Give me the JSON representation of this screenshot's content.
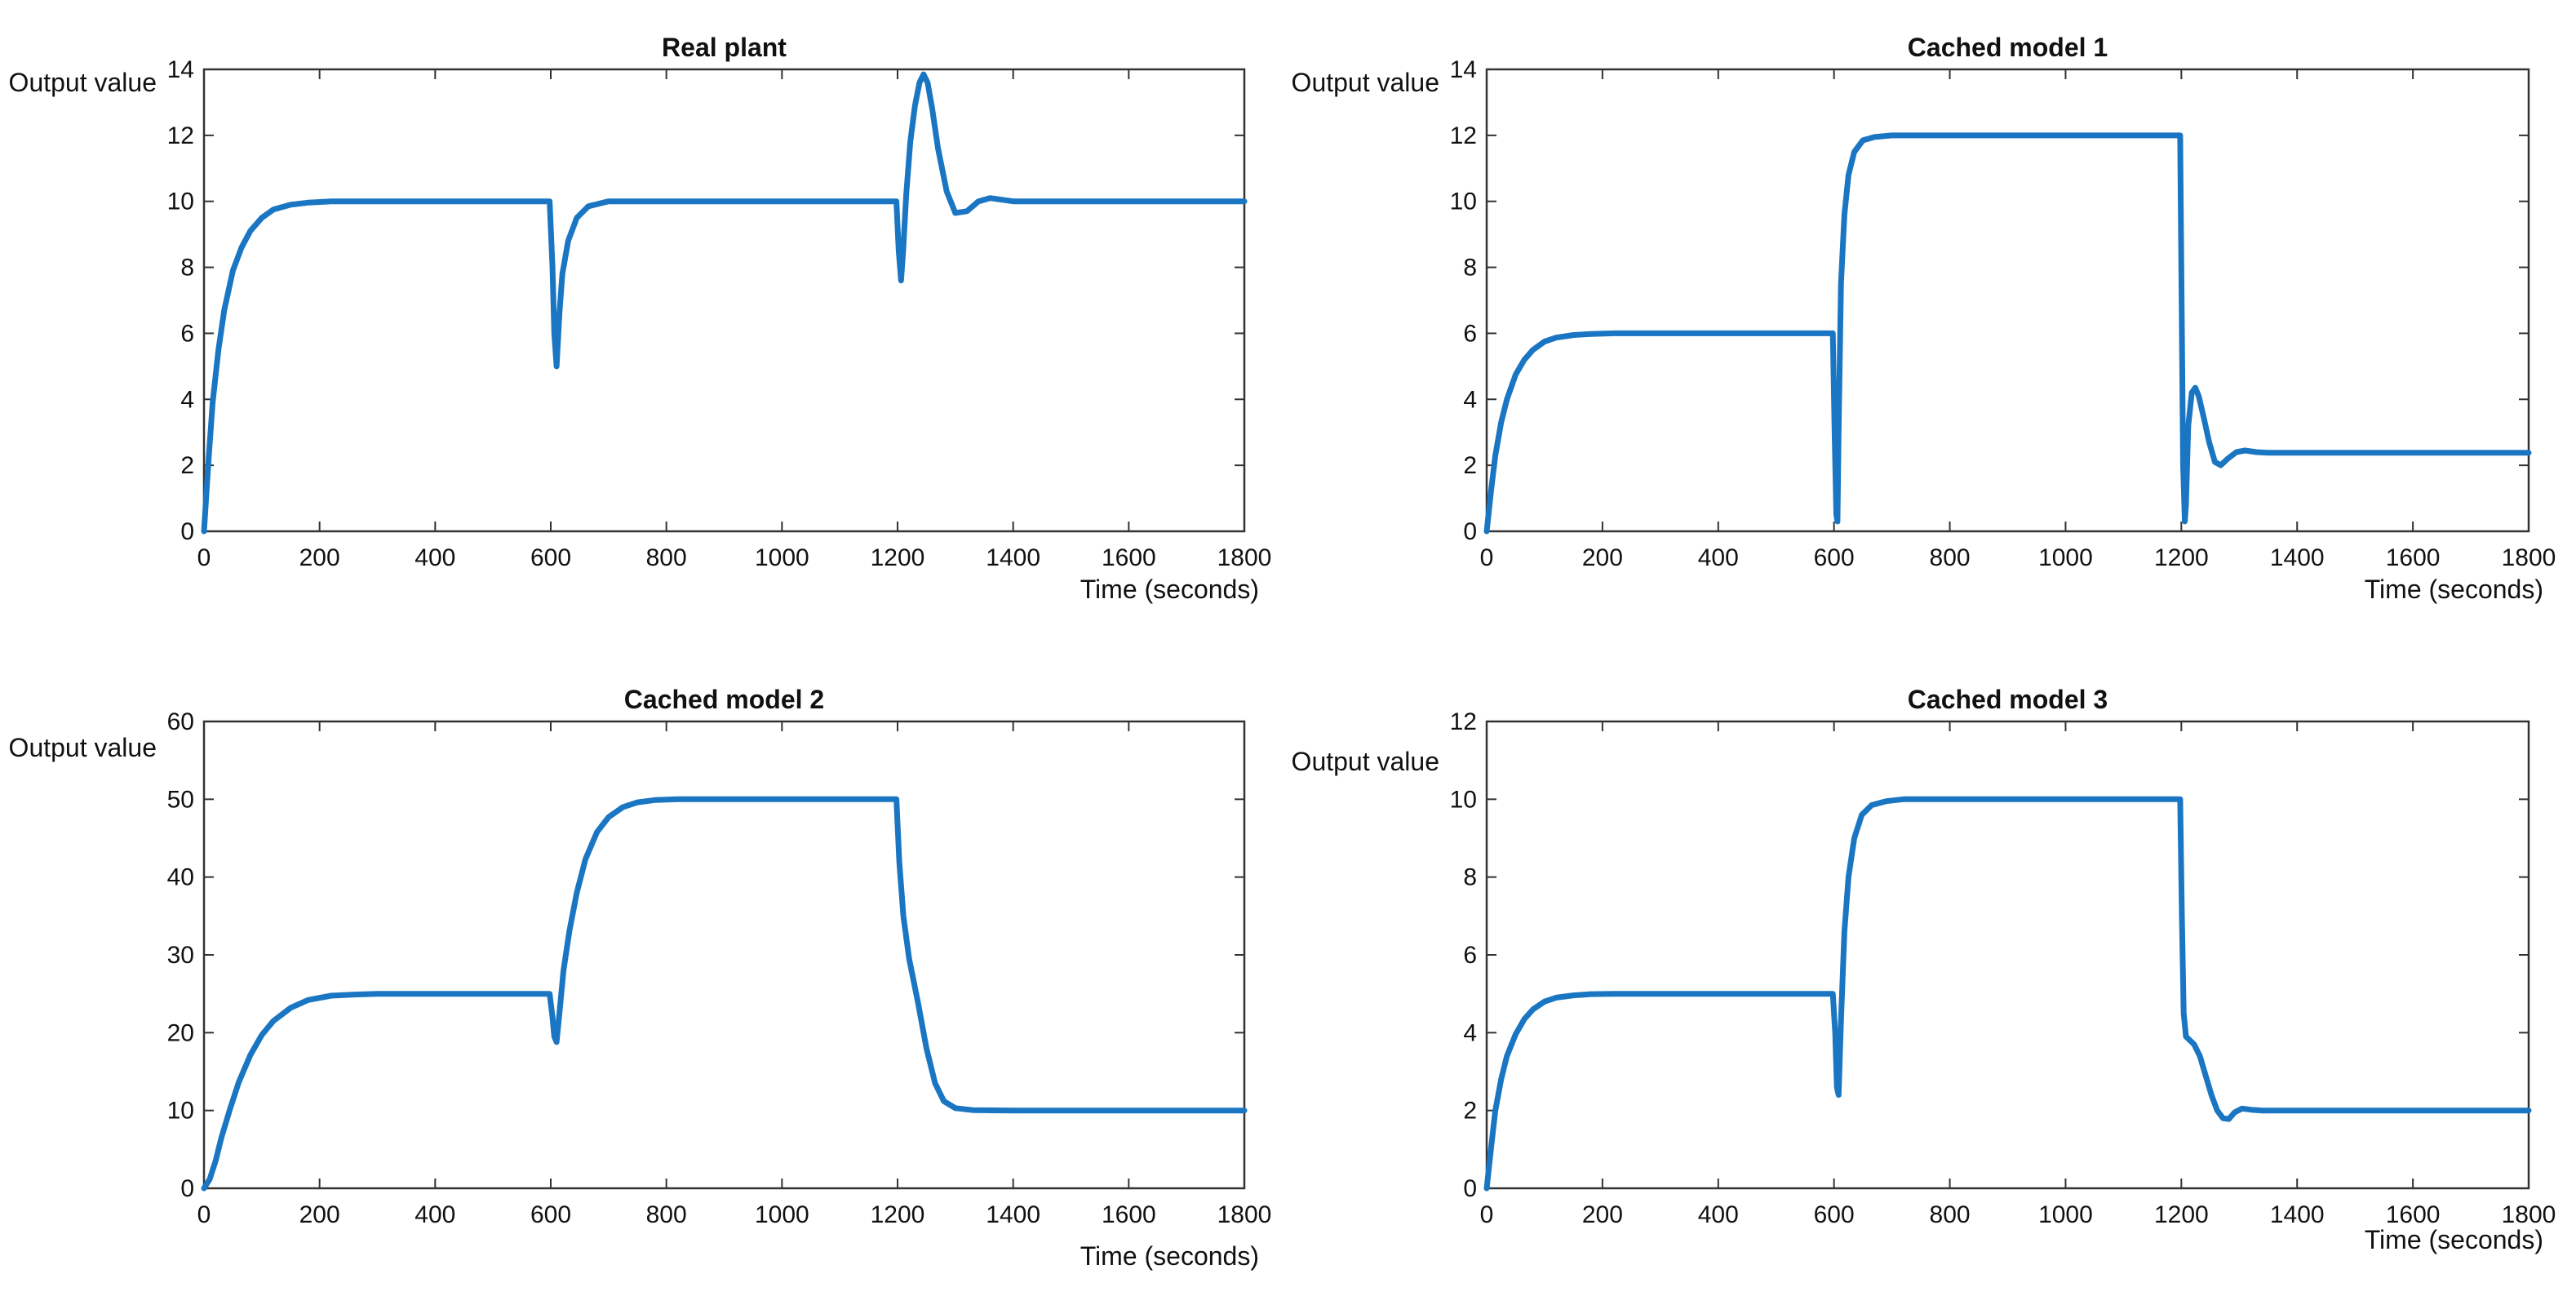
{
  "chart_data": [
    {
      "type": "line",
      "title": "Real plant",
      "xlabel": "Time (seconds)",
      "ylabel": "Output value",
      "xlim": [
        0,
        1800
      ],
      "ylim": [
        0,
        14
      ],
      "xticks": [
        "0",
        "200",
        "400",
        "600",
        "800",
        "1000",
        "1200",
        "1400",
        "1600",
        "1800"
      ],
      "yticks": [
        "0",
        "2",
        "4",
        "6",
        "8",
        "10",
        "12",
        "14"
      ],
      "series": [
        {
          "name": "output",
          "color": "#1a76c2",
          "x": [
            0,
            8,
            15,
            25,
            35,
            50,
            65,
            80,
            100,
            120,
            150,
            180,
            220,
            300,
            400,
            500,
            598,
            603,
            606,
            610,
            615,
            620,
            630,
            645,
            665,
            700,
            800,
            900,
            1000,
            1100,
            1198,
            1202,
            1206,
            1210,
            1215,
            1222,
            1230,
            1238,
            1245,
            1252,
            1260,
            1270,
            1285,
            1300,
            1320,
            1340,
            1360,
            1380,
            1400,
            1500,
            1600,
            1700,
            1800
          ],
          "y": [
            0,
            2.2,
            3.9,
            5.5,
            6.7,
            7.9,
            8.6,
            9.1,
            9.5,
            9.75,
            9.9,
            9.96,
            10,
            10,
            10,
            10,
            10,
            8,
            6,
            5,
            6.6,
            7.8,
            8.8,
            9.5,
            9.85,
            10,
            10,
            10,
            10,
            10,
            10,
            8.5,
            7.6,
            8.6,
            10.2,
            11.8,
            12.9,
            13.6,
            13.85,
            13.6,
            12.8,
            11.6,
            10.3,
            9.65,
            9.7,
            10.0,
            10.1,
            10.05,
            10,
            10,
            10,
            10,
            10
          ]
        }
      ]
    },
    {
      "type": "line",
      "title": "Cached model 1",
      "xlabel": "Time (seconds)",
      "ylabel": "Output value",
      "xlim": [
        0,
        1800
      ],
      "ylim": [
        0,
        14
      ],
      "xticks": [
        "0",
        "200",
        "400",
        "600",
        "800",
        "1000",
        "1200",
        "1400",
        "1600",
        "1800"
      ],
      "yticks": [
        "0",
        "2",
        "4",
        "6",
        "8",
        "10",
        "12",
        "14"
      ],
      "series": [
        {
          "name": "output",
          "color": "#1a76c2",
          "x": [
            0,
            8,
            15,
            25,
            35,
            50,
            65,
            80,
            100,
            120,
            150,
            180,
            220,
            300,
            400,
            500,
            598,
            601,
            604,
            606,
            608,
            612,
            618,
            625,
            635,
            650,
            670,
            700,
            800,
            900,
            1000,
            1100,
            1198,
            1200,
            1203,
            1206,
            1208,
            1212,
            1218,
            1224,
            1230,
            1238,
            1248,
            1258,
            1268,
            1280,
            1295,
            1310,
            1330,
            1350,
            1400,
            1500,
            1600,
            1700,
            1800
          ],
          "y": [
            0,
            1.3,
            2.3,
            3.3,
            4.0,
            4.75,
            5.2,
            5.5,
            5.75,
            5.87,
            5.95,
            5.98,
            6,
            6,
            6,
            6,
            6,
            3,
            0.5,
            0.3,
            3,
            7.5,
            9.6,
            10.8,
            11.5,
            11.85,
            11.95,
            12,
            12,
            12,
            12,
            12,
            12,
            8,
            2,
            0.3,
            0.8,
            3.2,
            4.2,
            4.35,
            4.1,
            3.5,
            2.7,
            2.1,
            2.0,
            2.2,
            2.4,
            2.45,
            2.4,
            2.38,
            2.38,
            2.38,
            2.38,
            2.38,
            2.38
          ]
        }
      ]
    },
    {
      "type": "line",
      "title": "Cached model 2",
      "xlabel": "Time (seconds)",
      "ylabel": "Output value",
      "xlim": [
        0,
        1800
      ],
      "ylim": [
        0,
        60
      ],
      "xticks": [
        "0",
        "200",
        "400",
        "600",
        "800",
        "1000",
        "1200",
        "1400",
        "1600",
        "1800"
      ],
      "yticks": [
        "0",
        "10",
        "20",
        "30",
        "40",
        "50",
        "60"
      ],
      "series": [
        {
          "name": "output",
          "color": "#1a76c2",
          "x": [
            0,
            10,
            20,
            30,
            45,
            60,
            80,
            100,
            120,
            150,
            180,
            220,
            260,
            300,
            400,
            500,
            598,
            603,
            606,
            610,
            615,
            622,
            632,
            645,
            660,
            680,
            700,
            725,
            750,
            780,
            820,
            900,
            1000,
            1100,
            1198,
            1203,
            1210,
            1220,
            1235,
            1250,
            1265,
            1280,
            1300,
            1330,
            1400,
            1500,
            1600,
            1700,
            1800
          ],
          "y": [
            0,
            1.2,
            3.5,
            6.5,
            10.2,
            13.6,
            17.1,
            19.7,
            21.5,
            23.2,
            24.2,
            24.75,
            24.9,
            25,
            25,
            25,
            25,
            22,
            19.5,
            18.8,
            22.5,
            28,
            33,
            38,
            42.3,
            45.8,
            47.7,
            49,
            49.6,
            49.9,
            50,
            50,
            50,
            50,
            50,
            42,
            35,
            29.5,
            24,
            18,
            13.5,
            11.2,
            10.3,
            10.05,
            10,
            10,
            10,
            10,
            10
          ]
        }
      ]
    },
    {
      "type": "line",
      "title": "Cached model 3",
      "xlabel": "Time (seconds)",
      "ylabel": "Output value",
      "xlim": [
        0,
        1800
      ],
      "ylim": [
        0,
        12
      ],
      "xticks": [
        "0",
        "200",
        "400",
        "600",
        "800",
        "1000",
        "1200",
        "1400",
        "1600",
        "1800"
      ],
      "yticks": [
        "0",
        "2",
        "4",
        "6",
        "8",
        "10",
        "12"
      ],
      "series": [
        {
          "name": "output",
          "color": "#1a76c2",
          "x": [
            0,
            8,
            15,
            25,
            35,
            50,
            65,
            80,
            100,
            120,
            150,
            180,
            220,
            300,
            400,
            500,
            598,
            602,
            605,
            608,
            612,
            618,
            625,
            635,
            648,
            665,
            690,
            720,
            800,
            900,
            1000,
            1100,
            1198,
            1201,
            1204,
            1208,
            1215,
            1222,
            1232,
            1242,
            1252,
            1262,
            1272,
            1282,
            1292,
            1305,
            1320,
            1340,
            1400,
            1500,
            1600,
            1700,
            1800
          ],
          "y": [
            0,
            1.1,
            2.0,
            2.8,
            3.4,
            3.96,
            4.35,
            4.6,
            4.8,
            4.9,
            4.96,
            4.99,
            5,
            5,
            5,
            5,
            5,
            4,
            2.6,
            2.4,
            4.3,
            6.6,
            8,
            9.0,
            9.6,
            9.85,
            9.95,
            10,
            10,
            10,
            10,
            10,
            10,
            7,
            4.5,
            3.9,
            3.8,
            3.7,
            3.4,
            2.9,
            2.4,
            2.0,
            1.8,
            1.78,
            1.95,
            2.05,
            2.02,
            2.0,
            2.0,
            2.0,
            2.0,
            2.0,
            2.0
          ]
        }
      ]
    }
  ]
}
